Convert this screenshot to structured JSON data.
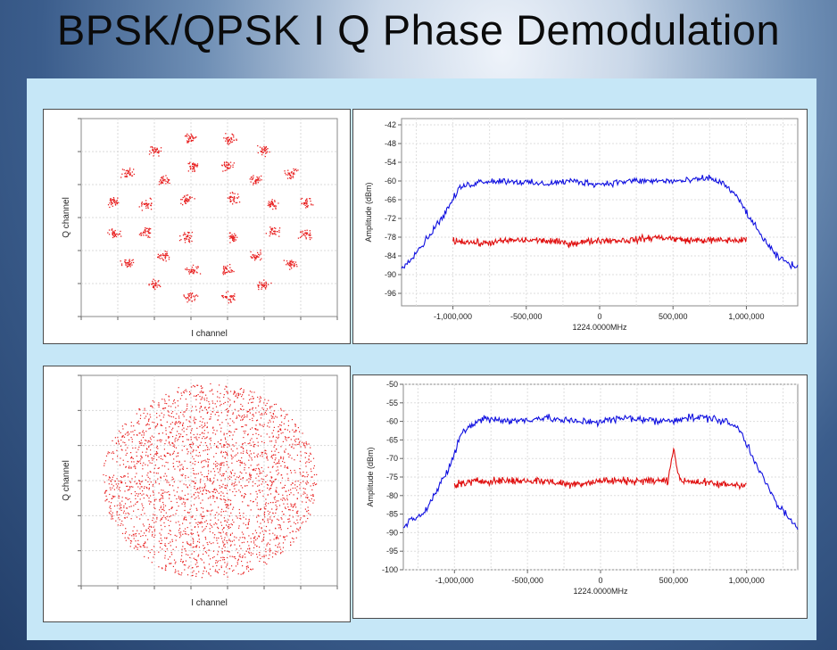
{
  "title": "BPSK/QPSK I Q Phase Demodulation",
  "chart_data": [
    {
      "type": "scatter",
      "panel": "top-left",
      "xlabel": "I channel",
      "ylabel": "Q channel",
      "points_color": "#e82020",
      "constellation": "clustered rings",
      "grid": true
    },
    {
      "type": "line",
      "panel": "top-right",
      "xlabel": "1224.0000MHz",
      "ylabel": "Amplitude (dBm)",
      "xticks": [
        "-1,000,000",
        "-500,000",
        "0",
        "500,000",
        "1,000,000"
      ],
      "xtick_values": [
        -1000000,
        -500000,
        0,
        500000,
        1000000
      ],
      "xlim": [
        -1350000,
        1350000
      ],
      "yticks": [
        -42,
        -48,
        -54,
        -60,
        -66,
        -72,
        -78,
        -84,
        -90,
        -96
      ],
      "ylim": [
        -100,
        -40
      ],
      "grid": true,
      "series": [
        {
          "color": "#1010e0",
          "x": [
            -1350000,
            -1200000,
            -1050000,
            -950000,
            -800000,
            -600000,
            -400000,
            -200000,
            0,
            200000,
            400000,
            600000,
            750000,
            850000,
            950000,
            1050000,
            1200000,
            1350000
          ],
          "values": [
            -88,
            -80,
            -70,
            -62,
            -60,
            -60,
            -61,
            -60,
            -61,
            -60,
            -60,
            -60,
            -59,
            -61,
            -66,
            -74,
            -84,
            -88
          ]
        },
        {
          "color": "#e01010",
          "x": [
            -1000000,
            -800000,
            -600000,
            -400000,
            -200000,
            0,
            200000,
            400000,
            600000,
            800000,
            1000000
          ],
          "values": [
            -79,
            -80,
            -79,
            -79,
            -80,
            -79,
            -79,
            -78,
            -79,
            -79,
            -79
          ]
        }
      ]
    },
    {
      "type": "scatter",
      "panel": "bottom-left",
      "xlabel": "I channel",
      "ylabel": "Q channel",
      "points_color": "#e82020",
      "constellation": "dense disc",
      "grid": true
    },
    {
      "type": "line",
      "panel": "bottom-right",
      "xlabel": "1224.0000MHz",
      "ylabel": "Amplitude (dBm)",
      "xticks": [
        "-1,000,000",
        "-500,000",
        "0",
        "500,000",
        "1,000,000"
      ],
      "xtick_values": [
        -1000000,
        -500000,
        0,
        500000,
        1000000
      ],
      "xlim": [
        -1350000,
        1350000
      ],
      "yticks": [
        -50,
        -55,
        -60,
        -65,
        -70,
        -75,
        -80,
        -85,
        -90,
        -95,
        -100
      ],
      "ylim": [
        -100,
        -50
      ],
      "grid": true,
      "series": [
        {
          "color": "#1010e0",
          "x": [
            -1350000,
            -1200000,
            -1050000,
            -950000,
            -800000,
            -600000,
            -400000,
            -200000,
            0,
            200000,
            400000,
            600000,
            750000,
            850000,
            950000,
            1050000,
            1200000,
            1350000
          ],
          "values": [
            -88,
            -84,
            -74,
            -63,
            -59,
            -60,
            -59,
            -60,
            -60,
            -59,
            -60,
            -59,
            -59,
            -60,
            -62,
            -70,
            -82,
            -89
          ]
        },
        {
          "color": "#e01010",
          "x": [
            -1000000,
            -800000,
            -600000,
            -400000,
            -200000,
            0,
            200000,
            400000,
            460000,
            500000,
            540000,
            600000,
            800000,
            1000000
          ],
          "values": [
            -77,
            -76,
            -76,
            -76,
            -77,
            -76,
            -76,
            -76,
            -76,
            -67,
            -76,
            -76,
            -77,
            -77
          ]
        }
      ]
    }
  ]
}
